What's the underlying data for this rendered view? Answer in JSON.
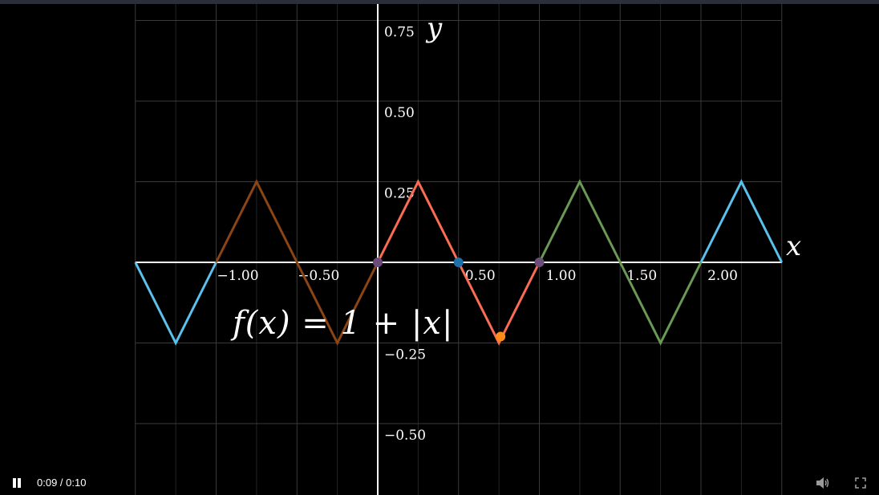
{
  "chart_data": {
    "type": "line",
    "title": "",
    "xlabel": "x",
    "ylabel": "y",
    "xlim": [
      -1.5,
      2.5
    ],
    "ylim": [
      -0.5,
      0.75
    ],
    "grid": true,
    "x_ticks": [
      -1.0,
      -0.5,
      0.5,
      1.0,
      1.5,
      2.0
    ],
    "x_tick_labels": [
      "−1.00",
      "−0.50",
      "0.50",
      "1.00",
      "1.50",
      "2.00"
    ],
    "y_ticks": [
      0.75,
      0.5,
      0.25,
      -0.25,
      -0.5
    ],
    "y_tick_labels": [
      "0.75",
      "0.50",
      "0.25",
      "−0.25",
      "−0.50"
    ],
    "series": [
      {
        "color": "#5bc0eb",
        "x": [
          -1.5,
          -1.25,
          -1.0
        ],
        "y": [
          0,
          -0.25,
          0
        ]
      },
      {
        "color": "#8b4513",
        "x": [
          -1.0,
          -0.75,
          -0.5,
          -0.25,
          0.0
        ],
        "y": [
          0,
          0.25,
          0,
          -0.25,
          0
        ]
      },
      {
        "color": "#fc6c54",
        "x": [
          0.0,
          0.25,
          0.5,
          0.75,
          1.0
        ],
        "y": [
          0,
          0.25,
          0,
          -0.25,
          0
        ]
      },
      {
        "color": "#6a9955",
        "x": [
          1.0,
          1.25,
          1.5,
          1.75,
          2.0
        ],
        "y": [
          0,
          0.25,
          0,
          -0.25,
          0
        ]
      },
      {
        "color": "#5bc0eb",
        "x": [
          2.0,
          2.25,
          2.5
        ],
        "y": [
          0,
          0.25,
          0
        ]
      }
    ],
    "points": [
      {
        "x": 0.0,
        "y": 0.0,
        "color": "#6b4c7a"
      },
      {
        "x": 0.5,
        "y": 0.0,
        "color": "#1f6fa8"
      },
      {
        "x": 1.0,
        "y": 0.0,
        "color": "#6b4c7a"
      },
      {
        "x": 0.76,
        "y": -0.23,
        "color": "#ff8c1a"
      }
    ],
    "annotation": "f(x) = 1 + |x|"
  },
  "player": {
    "time": "0:09 / 0:10"
  },
  "icons": {
    "play": "pause-icon",
    "volume": "volume-icon",
    "fullscreen": "fullscreen-icon"
  },
  "colors": {
    "background": "#000000",
    "grid": "#3a3a3a",
    "axis": "#ffffff"
  }
}
